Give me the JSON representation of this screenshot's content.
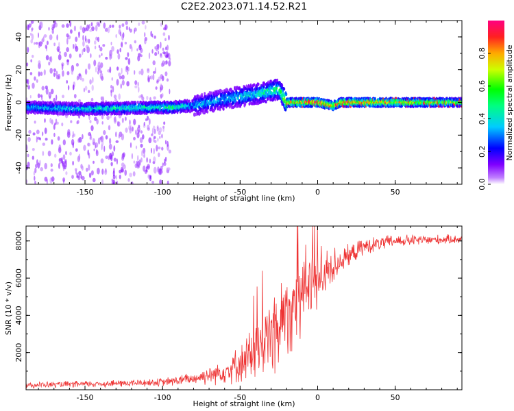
{
  "title": "C2E2.2023.071.14.52.R21",
  "chart_data": [
    {
      "type": "heatmap",
      "xlabel": "Height of straight line (km)",
      "ylabel": "Frequency (Hz)",
      "xlim": [
        -188,
        93
      ],
      "ylim": [
        -50,
        50
      ],
      "xticks": [
        -150,
        -100,
        -50,
        0,
        50
      ],
      "xtick_labels": [
        "-150",
        "-100",
        "-50",
        "0",
        "50"
      ],
      "yticks": [
        -40,
        -20,
        0,
        20,
        40
      ],
      "ytick_labels": [
        "-40",
        "-20",
        "0",
        "20",
        "40"
      ],
      "colorbar": {
        "label": "Normalized spectral amplitude",
        "range": [
          0,
          1
        ],
        "ticks": [
          0.0,
          0.2,
          0.4,
          0.6,
          0.8
        ],
        "tick_labels": [
          "0.0",
          "0.2",
          "0.4",
          "0.6",
          "0.8"
        ],
        "colormap": "rainbow"
      },
      "ridge": {
        "x": [
          -188,
          -150,
          -100,
          -95,
          -80,
          -60,
          -40,
          -25,
          -20,
          0,
          10,
          15,
          50,
          93
        ],
        "freq": [
          -3,
          -4,
          -3,
          -3,
          -2,
          2,
          5,
          8,
          0,
          0,
          -2,
          0,
          0,
          0
        ],
        "amplitude": [
          0.35,
          0.4,
          0.45,
          0.5,
          0.35,
          0.35,
          0.4,
          0.5,
          0.75,
          0.9,
          0.8,
          0.85,
          0.75,
          0.6
        ]
      }
    },
    {
      "type": "line",
      "xlabel": "Height of straight line (km)",
      "ylabel": "SNR (10 * v/v)",
      "xlim": [
        -188,
        93
      ],
      "ylim": [
        0,
        8800
      ],
      "xticks": [
        -150,
        -100,
        -50,
        0,
        50
      ],
      "xtick_labels": [
        "-150",
        "-100",
        "-50",
        "0",
        "50"
      ],
      "yticks": [
        2000,
        4000,
        6000,
        8000
      ],
      "ytick_labels": [
        "2000",
        "4000",
        "6000",
        "8000"
      ],
      "color": "#ee3333",
      "envelope": {
        "x": [
          -188,
          -150,
          -100,
          -80,
          -60,
          -50,
          -40,
          -30,
          -20,
          -10,
          0,
          10,
          20,
          30,
          50,
          93
        ],
        "y": [
          250,
          300,
          400,
          600,
          1000,
          1400,
          2000,
          3000,
          4200,
          5200,
          6000,
          6700,
          7200,
          7700,
          8000,
          8100
        ],
        "spread": [
          150,
          160,
          200,
          300,
          600,
          900,
          1500,
          2200,
          2300,
          2000,
          1500,
          900,
          500,
          400,
          300,
          200
        ]
      }
    }
  ]
}
